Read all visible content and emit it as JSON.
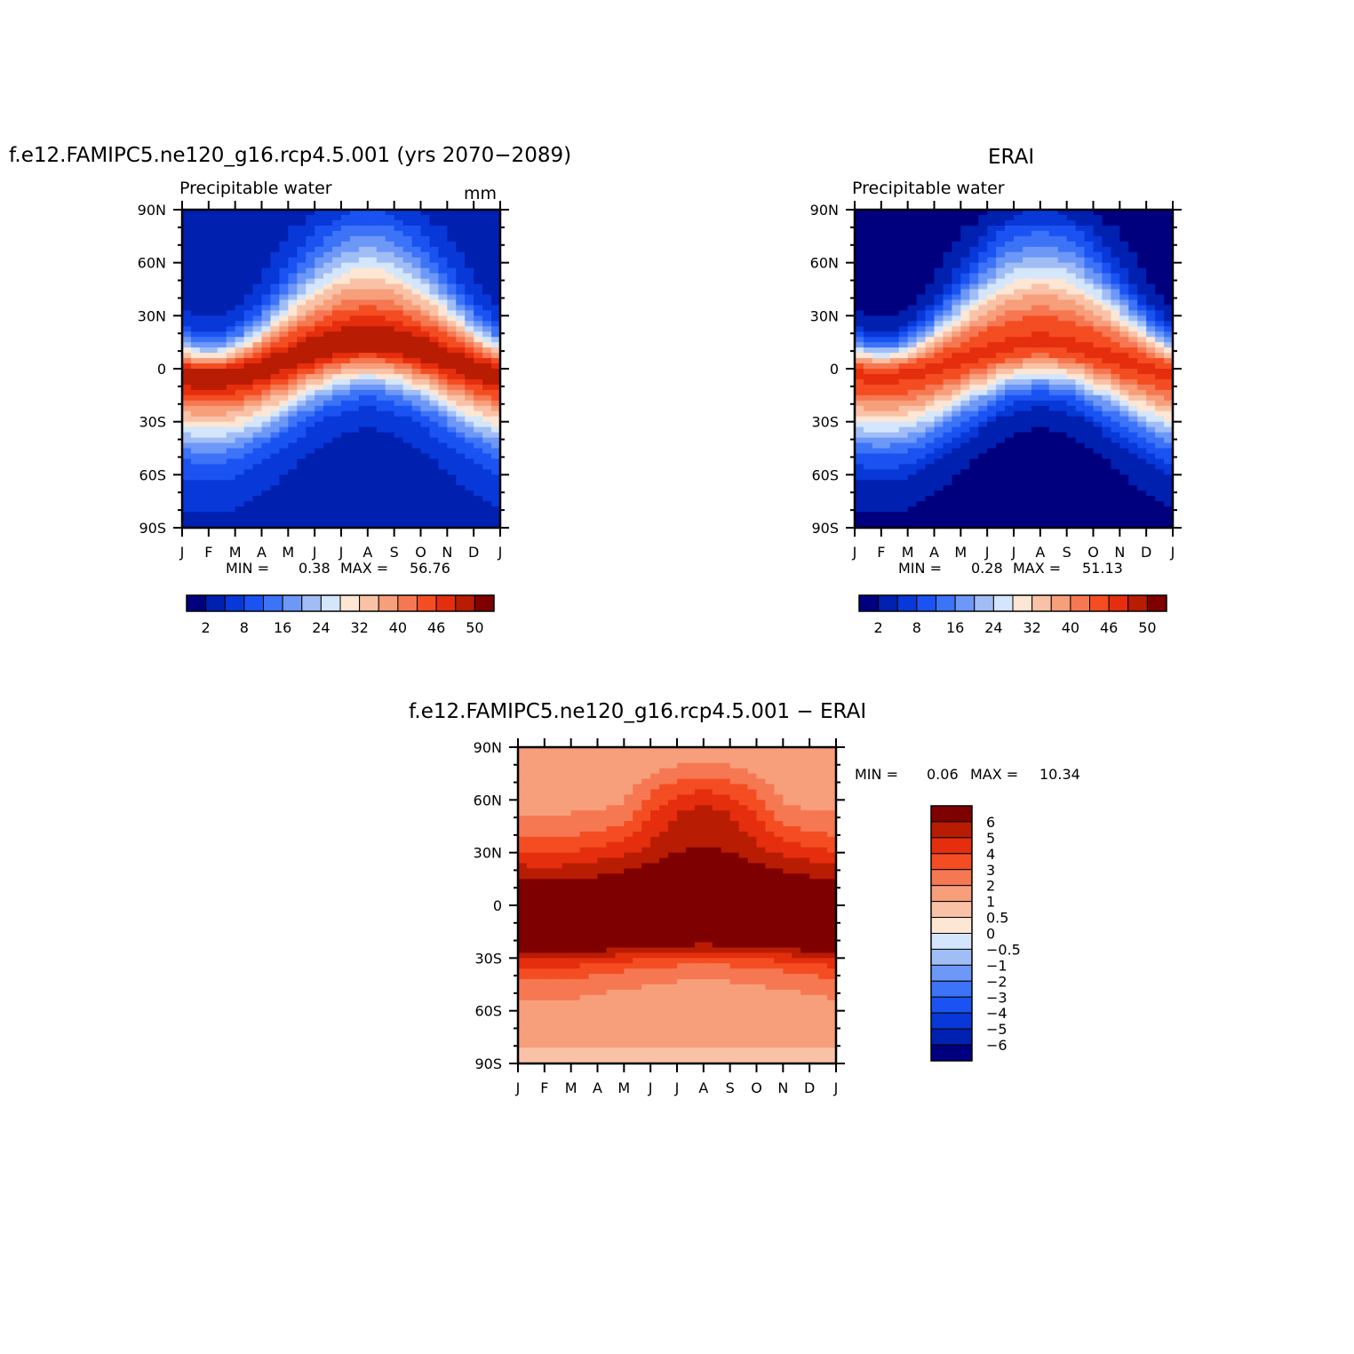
{
  "chart_data": [
    {
      "type": "heatmap",
      "title": "f.e12.FAMIPC5.ne120_g16.rcp4.5.001 (yrs 2070−2089)",
      "subtitle": "Precipitable water",
      "units": "mm",
      "x_tick_labels": [
        "J",
        "F",
        "M",
        "A",
        "M",
        "J",
        "J",
        "A",
        "S",
        "O",
        "N",
        "D",
        "J"
      ],
      "y_tick_labels": [
        "90N",
        "60N",
        "30N",
        "0",
        "30S",
        "60S",
        "90S"
      ],
      "ylim": [
        -90,
        90
      ],
      "min_label": "MIN =",
      "min_value": "0.38",
      "max_label": "MAX =",
      "max_value": "56.76",
      "colorbar_labels": [
        "2",
        "8",
        "16",
        "24",
        "32",
        "40",
        "46",
        "50"
      ]
    },
    {
      "type": "heatmap",
      "title": "ERAI",
      "subtitle": "Precipitable water",
      "x_tick_labels": [
        "J",
        "F",
        "M",
        "A",
        "M",
        "J",
        "J",
        "A",
        "S",
        "O",
        "N",
        "D",
        "J"
      ],
      "y_tick_labels": [
        "90N",
        "60N",
        "30N",
        "0",
        "30S",
        "60S",
        "90S"
      ],
      "ylim": [
        -90,
        90
      ],
      "min_label": "MIN =",
      "min_value": "0.28",
      "max_label": "MAX =",
      "max_value": "51.13",
      "colorbar_labels": [
        "2",
        "8",
        "16",
        "24",
        "32",
        "40",
        "46",
        "50"
      ]
    },
    {
      "type": "heatmap",
      "title": "f.e12.FAMIPC5.ne120_g16.rcp4.5.001  −  ERAI",
      "x_tick_labels": [
        "J",
        "F",
        "M",
        "A",
        "M",
        "J",
        "J",
        "A",
        "S",
        "O",
        "N",
        "D",
        "J"
      ],
      "y_tick_labels": [
        "90N",
        "60N",
        "30N",
        "0",
        "30S",
        "60S",
        "90S"
      ],
      "ylim": [
        -90,
        90
      ],
      "min_label": "MIN =",
      "min_value": "0.06",
      "max_label": "MAX =",
      "max_value": "10.34",
      "colorbar_labels": [
        "6",
        "5",
        "4",
        "3",
        "2",
        "1",
        "0.5",
        "0",
        "−0.5",
        "−1",
        "−2",
        "−3",
        "−4",
        "−5",
        "−6"
      ]
    }
  ],
  "palette": [
    "#00007f",
    "#0020b0",
    "#0838d8",
    "#1a53f2",
    "#3c73f7",
    "#6d98f7",
    "#a1bdf6",
    "#d3e6fb",
    "#fde6d4",
    "#f9c2a7",
    "#f79e7b",
    "#f57852",
    "#f44d22",
    "#e52e0d",
    "#b81c03",
    "#7f0000"
  ]
}
